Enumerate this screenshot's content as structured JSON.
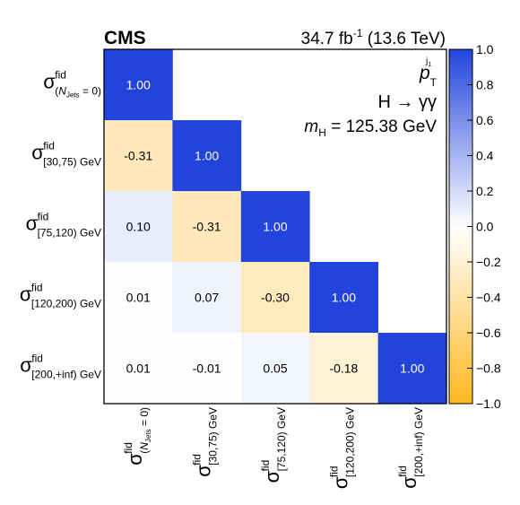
{
  "chart_data": {
    "type": "heatmap",
    "experiment": "CMS",
    "lumi": "34.7 fb",
    "lumi_exponent": "-1",
    "energy": "(13.6 TeV)",
    "annotation": {
      "observable_sym": "p",
      "observable_sup": "j",
      "observable_sup2": "1",
      "observable_sub": "T",
      "channel": "H → γγ",
      "mass_sym": "m",
      "mass_sub": "H",
      "mass_value": "= 125.38 GeV"
    },
    "sigma_symbol": "σ",
    "sigma_sup": "fid",
    "bins": [
      {
        "pre": "(",
        "italic": "N",
        "sub": "Jets",
        "post": " = 0)"
      },
      {
        "pre": "[30,75) GeV"
      },
      {
        "pre": "[75,120) GeV"
      },
      {
        "pre": "[120,200) GeV"
      },
      {
        "pre": "[200,+inf) GeV"
      }
    ],
    "matrix": [
      [
        1.0,
        null,
        null,
        null,
        null
      ],
      [
        -0.31,
        1.0,
        null,
        null,
        null
      ],
      [
        0.1,
        -0.31,
        1.0,
        null,
        null
      ],
      [
        0.01,
        0.07,
        -0.3,
        1.0,
        null
      ],
      [
        0.01,
        -0.01,
        0.05,
        -0.18,
        1.0
      ]
    ],
    "cell_labels": [
      [
        "1.00",
        "",
        "",
        "",
        ""
      ],
      [
        "-0.31",
        "1.00",
        "",
        "",
        ""
      ],
      [
        "0.10",
        "-0.31",
        "1.00",
        "",
        ""
      ],
      [
        "0.01",
        "0.07",
        "-0.30",
        "1.00",
        ""
      ],
      [
        "0.01",
        "-0.01",
        "0.05",
        "-0.18",
        "1.00"
      ]
    ],
    "colorbar": {
      "range": [
        -1.0,
        1.0
      ],
      "ticks": [
        1.0,
        0.8,
        0.6,
        0.4,
        0.2,
        0.0,
        -0.2,
        -0.4,
        -0.6,
        -0.8,
        -1.0
      ],
      "tick_labels": [
        "1.0",
        "0.8",
        "0.6",
        "0.4",
        "0.2",
        "0.0",
        "−0.2",
        "−0.4",
        "−0.6",
        "−0.8",
        "−1.0"
      ],
      "color_max": "#2244dd",
      "color_mid": "#ffffff",
      "color_min": "#ffb820"
    }
  }
}
